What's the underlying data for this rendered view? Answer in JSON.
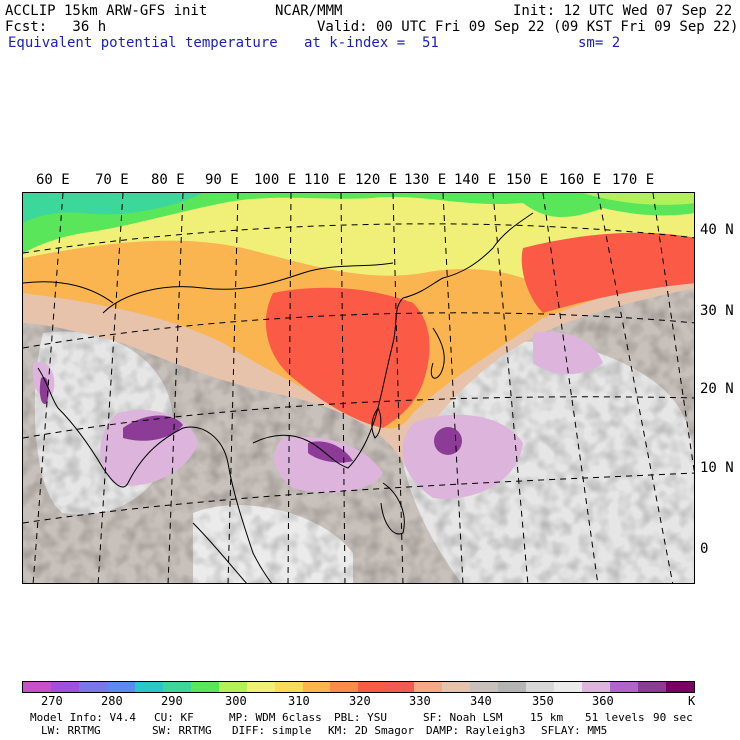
{
  "header": {
    "line1_left": "ACCLIP 15km ARW-GFS init",
    "line1_center": "NCAR/MMM",
    "line1_right": "Init: 12 UTC Wed 07 Sep 22",
    "line2_left": "Fcst:   36 h",
    "line2_right": "Valid: 00 UTC Fri 09 Sep 22 (09 KST Fri 09 Sep 22)",
    "line3_left": "Equivalent potential temperature",
    "line3_center": "at k-index =  51",
    "line3_right": "sm= 2"
  },
  "map": {
    "lon_labels": [
      "60 E",
      "70 E",
      "80 E",
      "90 E",
      "100 E",
      "110 E",
      "120 E",
      "130 E",
      "140 E",
      "150 E",
      "160 E",
      "170 E"
    ],
    "lat_labels": [
      "40 N",
      "30 N",
      "20 N",
      "10 N",
      "0"
    ]
  },
  "colorbar": {
    "colors": [
      "#c850c8",
      "#a050dc",
      "#7878e6",
      "#5a8cf0",
      "#28c8c8",
      "#3cd79b",
      "#5ae65a",
      "#b4f05a",
      "#f0f078",
      "#fadc5a",
      "#fab450",
      "#fa8c4b",
      "#fa5a46",
      "#f55a50",
      "#f5aa82",
      "#e6c3aa",
      "#c8c0bb",
      "#b4b4b4",
      "#d7d7d7",
      "#ebebeb",
      "#dcb4dc",
      "#b464c8",
      "#8c3c96",
      "#780064"
    ],
    "labels": [
      "270",
      "280",
      "290",
      "300",
      "310",
      "320",
      "330",
      "340",
      "350",
      "360",
      "K"
    ]
  },
  "model_info": {
    "line1": [
      "Model Info: V4.4",
      "CU: KF",
      "MP: WDM 6class",
      "PBL: YSU",
      "SF: Noah LSM",
      "15 km",
      "51 levels",
      "90 sec"
    ],
    "line2": [
      "LW: RRTMG",
      "SW: RRTMG",
      "DIFF: simple",
      "KM: 2D Smagor",
      "DAMP: Rayleigh3",
      "SFLAY: MM5"
    ]
  }
}
